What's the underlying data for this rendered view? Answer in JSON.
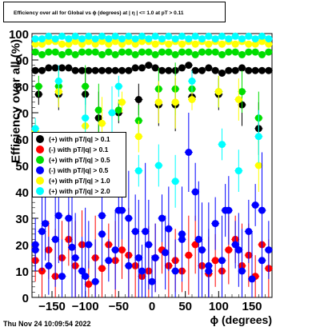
{
  "title": "Efficiency over all for Global vs ϕ (degrees) at | η | <= 1.0 at pT > 0.11",
  "timestamp": "Thu Nov 24 10:09:54 2022",
  "chart_data": {
    "type": "scatter",
    "xlabel": "ϕ (degrees)",
    "ylabel": "Efficiency over all (%)",
    "xlim": [
      -180,
      180
    ],
    "ylim": [
      0,
      100
    ],
    "xticks": [
      -150,
      -100,
      -50,
      0,
      50,
      100,
      150
    ],
    "xtick_labels": [
      "−150",
      "−100",
      "−50",
      "0",
      "50",
      "100",
      "150"
    ],
    "yticks": [
      0,
      10,
      20,
      30,
      40,
      50,
      60,
      70,
      80,
      90,
      100
    ],
    "ytick_labels": [
      "0",
      "10",
      "20",
      "30",
      "40",
      "50",
      "60",
      "70",
      "80",
      "90",
      "100"
    ],
    "legend_position": "left-middle",
    "series": [
      {
        "name": "(+) with pT/|q| > 0.1",
        "color": "#000000",
        "x": [
          -175,
          -165,
          -155,
          -145,
          -135,
          -125,
          -115,
          -105,
          -95,
          -85,
          -75,
          -65,
          -55,
          -45,
          -35,
          -25,
          -15,
          -5,
          5,
          15,
          25,
          35,
          45,
          55,
          65,
          75,
          85,
          95,
          105,
          115,
          125,
          135,
          145,
          155,
          165,
          175
        ],
        "y": [
          86,
          86,
          87,
          87,
          87,
          87,
          86,
          86,
          86,
          86,
          86,
          86,
          86,
          86,
          86,
          87,
          87,
          88,
          87,
          86,
          86,
          86,
          87,
          88,
          86,
          86,
          87,
          86,
          85,
          86,
          86,
          87,
          86,
          86,
          86,
          86
        ]
      },
      {
        "name": "(-) with pT/|q| > 0.1",
        "color": "#ff0000",
        "x": [
          -175,
          -165,
          -155,
          -145,
          -135,
          -125,
          -115,
          -105,
          -95,
          -85,
          -75,
          -65,
          -55,
          -45,
          -35,
          -25,
          -15,
          -5,
          5,
          15,
          25,
          35,
          45,
          55,
          65,
          75,
          85,
          95,
          105,
          115,
          125,
          135,
          145,
          155,
          165,
          175
        ],
        "y": [
          14,
          10,
          18,
          8,
          15,
          22,
          12,
          20,
          5,
          15,
          11,
          20,
          14,
          18,
          16,
          12,
          8,
          10,
          15,
          18,
          12,
          14,
          10,
          16,
          20,
          12,
          9,
          14,
          10,
          18,
          22,
          12,
          16,
          8,
          20,
          11
        ]
      },
      {
        "name": "(+) with pT/|q| > 0.5",
        "color": "#00dd00",
        "x": [
          -175,
          -165,
          -155,
          -145,
          -135,
          -125,
          -115,
          -105,
          -95,
          -85,
          -75,
          -65,
          -55,
          -45,
          -35,
          -25,
          -15,
          -5,
          5,
          15,
          25,
          35,
          45,
          55,
          65,
          75,
          85,
          95,
          105,
          115,
          125,
          135,
          145,
          155,
          165,
          175
        ],
        "y": [
          93,
          92,
          93,
          93,
          92,
          93,
          92,
          93,
          93,
          93,
          92,
          93,
          92,
          93,
          93,
          92,
          93,
          93,
          92,
          93,
          93,
          92,
          93,
          93,
          92,
          93,
          93,
          93,
          92,
          93,
          93,
          92,
          93,
          93,
          92,
          93
        ]
      },
      {
        "name": "(-) with pT/|q| > 0.5",
        "color": "#0000ff",
        "x": [
          -175,
          -165,
          -155,
          -145,
          -135,
          -125,
          -115,
          -105,
          -95,
          -85,
          -75,
          -65,
          -55,
          -45,
          -35,
          -25,
          -15,
          -5,
          5,
          15,
          25,
          35,
          45,
          55,
          65,
          75,
          85,
          95,
          105,
          115,
          125,
          135,
          145,
          155,
          165,
          175
        ],
        "y": [
          18,
          25,
          12,
          22,
          8,
          30,
          15,
          10,
          20,
          6,
          24,
          14,
          18,
          33,
          12,
          25,
          10,
          20,
          15,
          30,
          26,
          10,
          22,
          55,
          40,
          18,
          12,
          28,
          14,
          33,
          20,
          10,
          25,
          35,
          14,
          18
        ]
      },
      {
        "name": "(+) with pT/|q| > 1.0",
        "color": "#ffff00",
        "x": [
          -175,
          -165,
          -155,
          -145,
          -135,
          -125,
          -115,
          -105,
          -95,
          -85,
          -75,
          -65,
          -55,
          -45,
          -35,
          -25,
          -15,
          -5,
          5,
          15,
          25,
          35,
          45,
          55,
          65,
          75,
          85,
          95,
          105,
          115,
          125,
          135,
          145,
          155,
          165,
          175
        ],
        "y": [
          96,
          96,
          97,
          97,
          96,
          96,
          97,
          96,
          97,
          96,
          97,
          96,
          97,
          96,
          97,
          96,
          97,
          97,
          96,
          97,
          96,
          97,
          96,
          97,
          96,
          97,
          96,
          97,
          96,
          97,
          96,
          97,
          96,
          96,
          97,
          96
        ]
      },
      {
        "name": "(+) with pT/|q| > 2.0",
        "color": "#00ffff",
        "x": [
          -175,
          -165,
          -155,
          -145,
          -135,
          -125,
          -115,
          -105,
          -95,
          -85,
          -75,
          -65,
          -55,
          -45,
          -35,
          -25,
          -15,
          -5,
          5,
          15,
          25,
          35,
          45,
          55,
          65,
          75,
          85,
          95,
          105,
          115,
          125,
          135,
          145,
          155,
          165,
          175
        ],
        "y": [
          98,
          98,
          99,
          98,
          99,
          98,
          99,
          98,
          99,
          98,
          99,
          98,
          99,
          98,
          99,
          98,
          99,
          98,
          99,
          98,
          99,
          98,
          99,
          98,
          99,
          98,
          99,
          98,
          99,
          98,
          99,
          98,
          99,
          98,
          99,
          98
        ]
      }
    ],
    "extra_points": {
      "black": [
        [
          -170,
          77
        ],
        [
          -140,
          77
        ],
        [
          -100,
          77
        ],
        [
          -80,
          68
        ],
        [
          -50,
          70
        ],
        [
          -20,
          75
        ],
        [
          10,
          73
        ],
        [
          35,
          73
        ],
        [
          60,
          76
        ],
        [
          100,
          77
        ],
        [
          135,
          73
        ],
        [
          160,
          64
        ]
      ],
      "green": [
        [
          -170,
          80
        ],
        [
          -140,
          80
        ],
        [
          -100,
          80
        ],
        [
          -80,
          71
        ],
        [
          -50,
          71
        ],
        [
          -20,
          67
        ],
        [
          10,
          79
        ],
        [
          35,
          79
        ],
        [
          60,
          79
        ],
        [
          100,
          78
        ],
        [
          135,
          78
        ],
        [
          160,
          68
        ]
      ],
      "yellow": [
        [
          -175,
          63
        ],
        [
          -140,
          78
        ],
        [
          -100,
          65
        ],
        [
          -75,
          66
        ],
        [
          -45,
          74
        ],
        [
          -20,
          61
        ],
        [
          10,
          74
        ],
        [
          35,
          74
        ],
        [
          60,
          75
        ],
        [
          100,
          78
        ],
        [
          130,
          75
        ],
        [
          160,
          50
        ]
      ],
      "cyan": [
        [
          -175,
          64
        ],
        [
          -140,
          82
        ],
        [
          -100,
          68
        ],
        [
          -60,
          70
        ],
        [
          -50,
          80
        ],
        [
          -20,
          48
        ],
        [
          10,
          50
        ],
        [
          35,
          44
        ],
        [
          60,
          82
        ],
        [
          105,
          58
        ],
        [
          130,
          48
        ],
        [
          160,
          61
        ]
      ],
      "blue": [
        [
          -175,
          20
        ],
        [
          -160,
          28
        ],
        [
          -140,
          31
        ],
        [
          -120,
          19
        ],
        [
          -100,
          8
        ],
        [
          -75,
          31
        ],
        [
          -50,
          33
        ],
        [
          -35,
          30
        ],
        [
          -20,
          15
        ],
        [
          -10,
          25
        ],
        [
          0,
          6
        ],
        [
          20,
          17
        ],
        [
          45,
          24
        ],
        [
          70,
          22
        ],
        [
          85,
          10
        ],
        [
          110,
          33
        ],
        [
          130,
          18
        ],
        [
          150,
          7
        ],
        [
          165,
          33
        ]
      ]
    }
  }
}
